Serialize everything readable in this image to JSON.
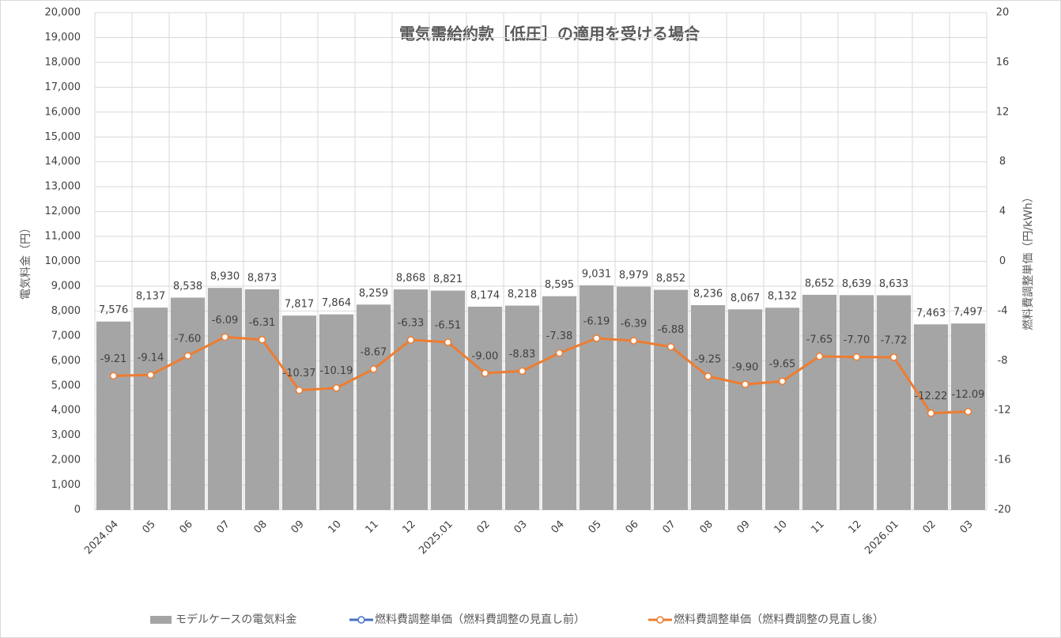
{
  "chart_data": {
    "type": "bar",
    "title": "電気需給約款［低圧］の適用を受ける場合",
    "y_label": "電気料金（円）",
    "y2_label": "燃料費調整単価（円/kWh）",
    "categories": [
      "2024.04",
      "05",
      "06",
      "07",
      "08",
      "09",
      "10",
      "11",
      "12",
      "2025.01",
      "02",
      "03",
      "04",
      "05",
      "06",
      "07",
      "08",
      "09",
      "10",
      "11",
      "12",
      "2026.01",
      "02",
      "03"
    ],
    "series": [
      {
        "name": "モデルケースの電気料金",
        "type": "bar",
        "color": "#a5a5a5",
        "values": [
          7576,
          8137,
          8538,
          8930,
          8873,
          7817,
          7864,
          8259,
          8868,
          8821,
          8174,
          8218,
          8595,
          9031,
          8979,
          8852,
          8236,
          8067,
          8132,
          8652,
          8639,
          8633,
          7463,
          7497
        ],
        "value_labels": [
          "7,576",
          "8,137",
          "8,538",
          "8,930",
          "8,873",
          "7,817",
          "7,864",
          "8,259",
          "8,868",
          "8,821",
          "8,174",
          "8,218",
          "8,595",
          "9,031",
          "8,979",
          "8,852",
          "8,236",
          "8,067",
          "8,132",
          "8,652",
          "8,639",
          "8,633",
          "7,463",
          "7,497"
        ]
      },
      {
        "name": "燃料費調整単価（燃料費調整の見直し前）",
        "type": "line",
        "axis": "y2",
        "color": "#4472c4",
        "values": [
          null,
          null,
          null,
          null,
          null,
          null,
          null,
          null,
          null,
          null,
          null,
          null,
          null,
          null,
          null,
          null,
          null,
          null,
          null,
          null,
          null,
          null,
          null,
          null
        ]
      },
      {
        "name": "燃料費調整単価（燃料費調整の見直し後）",
        "type": "line",
        "axis": "y2",
        "color": "#ed7d31",
        "values": [
          -9.21,
          -9.14,
          -7.6,
          -6.09,
          -6.31,
          -10.37,
          -10.19,
          -8.67,
          -6.33,
          -6.51,
          -9.0,
          -8.83,
          -7.38,
          -6.19,
          -6.39,
          -6.88,
          -9.25,
          -9.9,
          -9.65,
          -7.65,
          -7.7,
          -7.72,
          -12.22,
          -12.09
        ],
        "value_labels": [
          "-9.21",
          "-9.14",
          "-7.60",
          "-6.09",
          "-6.31",
          "-10.37",
          "-10.19",
          "-8.67",
          "-6.33",
          "-6.51",
          "-9.00",
          "-8.83",
          "-7.38",
          "-6.19",
          "-6.39",
          "-6.88",
          "-9.25",
          "-9.90",
          "-9.65",
          "-7.65",
          "-7.70",
          "-7.72",
          "-12.22",
          "-12.09"
        ]
      }
    ],
    "ylim": [
      0,
      20000
    ],
    "yticks": [
      0,
      {
        "value": 1000,
        "label": "1,000"
      },
      {
        "value": 2000,
        "label": "2,000"
      },
      {
        "value": 3000,
        "label": "3,000"
      },
      {
        "value": 4000,
        "label": "4,000"
      },
      {
        "value": 5000,
        "label": "5,000"
      },
      {
        "value": 6000,
        "label": "6,000"
      },
      {
        "value": 7000,
        "label": "7,000"
      },
      {
        "value": 8000,
        "label": "8,000"
      },
      {
        "value": 9000,
        "label": "9,000"
      },
      {
        "value": 10000,
        "label": "10,000"
      },
      {
        "value": 11000,
        "label": "11,000"
      },
      {
        "value": 12000,
        "label": "12,000"
      },
      {
        "value": 13000,
        "label": "13,000"
      },
      {
        "value": 14000,
        "label": "14,000"
      },
      {
        "value": 15000,
        "label": "15,000"
      },
      {
        "value": 16000,
        "label": "16,000"
      },
      {
        "value": 17000,
        "label": "17,000"
      },
      {
        "value": 18000,
        "label": "18,000"
      },
      {
        "value": 19000,
        "label": "19,000"
      },
      {
        "value": 20000,
        "label": "20,000"
      }
    ],
    "y2lim": [
      -20,
      20
    ],
    "y2ticks": [
      -20,
      -16,
      -12,
      -8,
      -4,
      0,
      4,
      8,
      12,
      16,
      20
    ],
    "grid": true,
    "legend": "bottom"
  }
}
